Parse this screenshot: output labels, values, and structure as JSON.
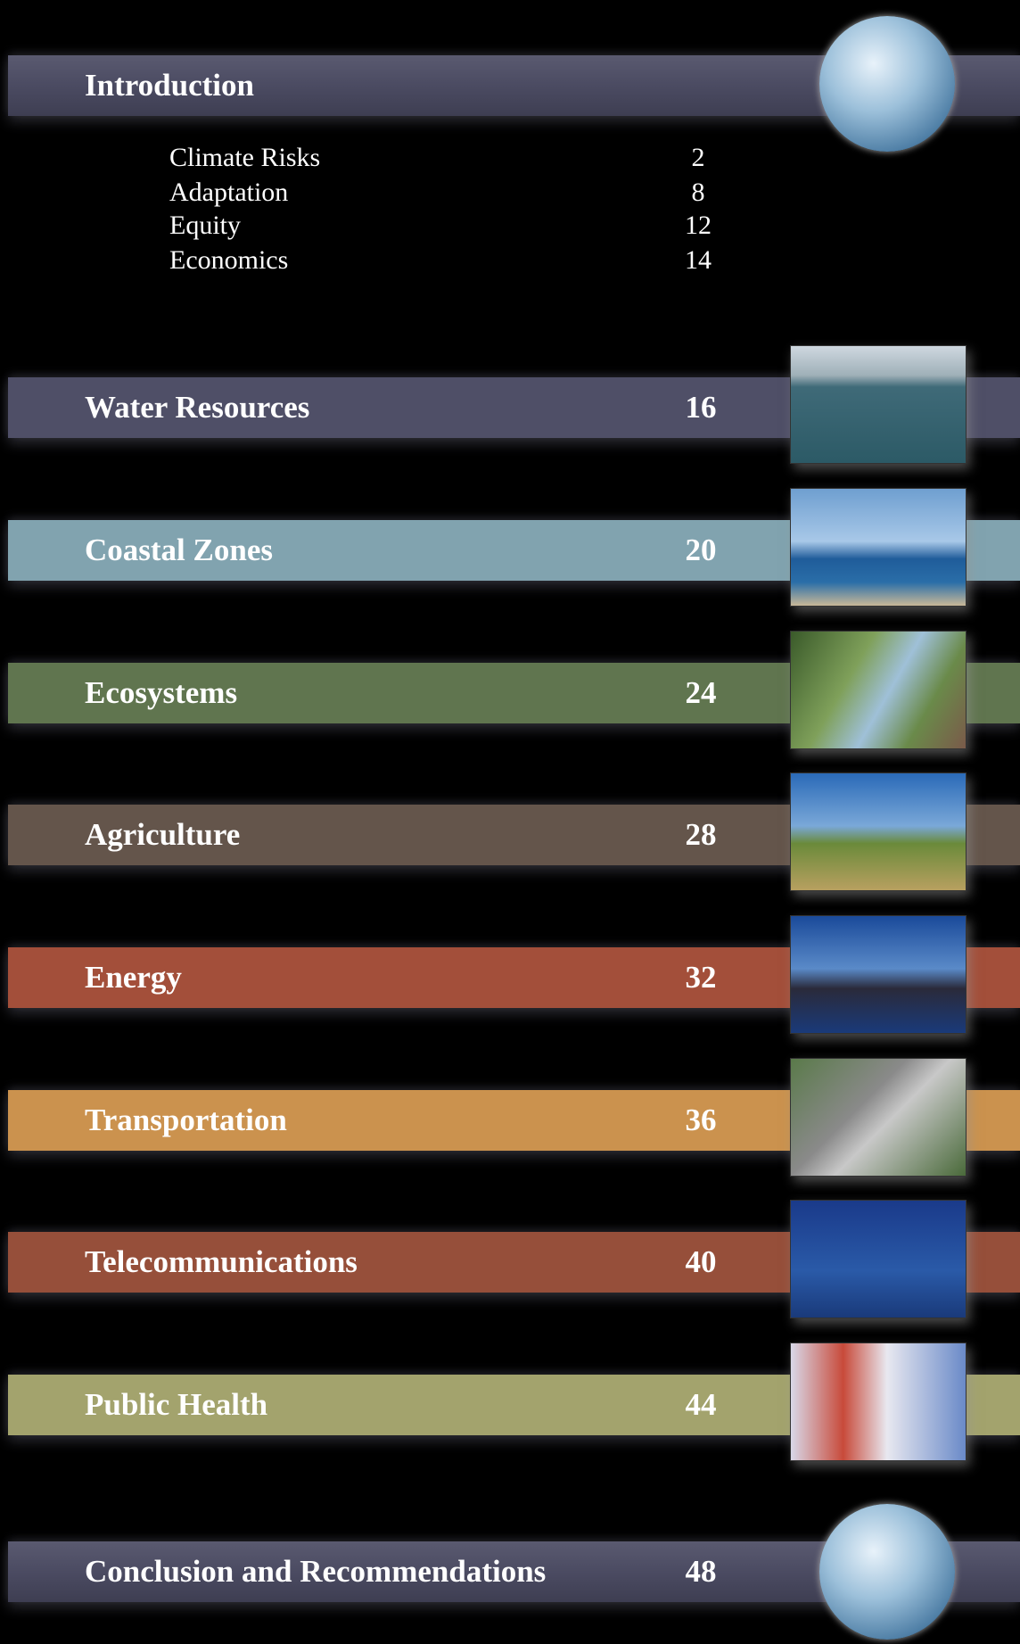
{
  "introduction": {
    "title": "Introduction",
    "items": [
      {
        "label": "Climate Risks",
        "page": 2
      },
      {
        "label": "Adaptation",
        "page": 8
      },
      {
        "label": "Equity",
        "page": 12
      },
      {
        "label": "Economics",
        "page": 14
      }
    ]
  },
  "sections": [
    {
      "title": "Water Resources",
      "page": 16,
      "color": "#4b4b62"
    },
    {
      "title": "Coastal Zones",
      "page": 20,
      "color": "#7b9ba7"
    },
    {
      "title": "Ecosystems",
      "page": 24,
      "color": "#5b6f4b"
    },
    {
      "title": "Agriculture",
      "page": 28,
      "color": "#5f5147"
    },
    {
      "title": "Energy",
      "page": 32,
      "color": "#9b4b37"
    },
    {
      "title": "Transportation",
      "page": 36,
      "color": "#c18b4a"
    },
    {
      "title": "Telecommunications",
      "page": 40,
      "color": "#8f4b37"
    },
    {
      "title": "Public Health",
      "page": 44,
      "color": "#9b9b68"
    }
  ],
  "conclusion": {
    "title": "Conclusion and Recommendations",
    "page": 48
  }
}
